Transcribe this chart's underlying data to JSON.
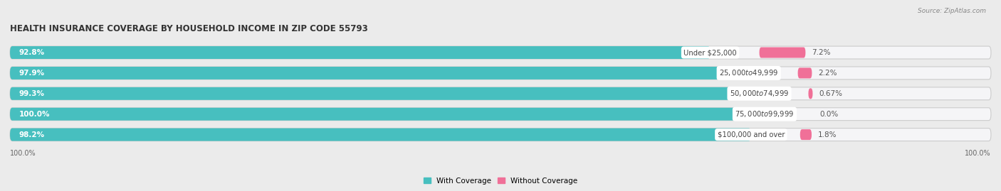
{
  "title": "HEALTH INSURANCE COVERAGE BY HOUSEHOLD INCOME IN ZIP CODE 55793",
  "source": "Source: ZipAtlas.com",
  "categories": [
    "Under $25,000",
    "$25,000 to $49,999",
    "$50,000 to $74,999",
    "$75,000 to $99,999",
    "$100,000 and over"
  ],
  "with_coverage": [
    92.8,
    97.9,
    99.3,
    100.0,
    98.2
  ],
  "without_coverage": [
    7.2,
    2.2,
    0.67,
    0.0,
    1.8
  ],
  "without_coverage_labels": [
    "7.2%",
    "2.2%",
    "0.67%",
    "0.0%",
    "1.8%"
  ],
  "with_coverage_labels": [
    "92.8%",
    "97.9%",
    "99.3%",
    "100.0%",
    "98.2%"
  ],
  "color_with": "#47BFBF",
  "color_without": "#F07098",
  "bg_color": "#ebebeb",
  "bar_bg": "#e0e0e4",
  "bar_inner_bg": "#f5f5f7",
  "label_color_with": "#ffffff",
  "category_label_color": "#444444",
  "title_fontsize": 8.5,
  "bar_height": 0.62,
  "legend_with": "With Coverage",
  "legend_without": "Without Coverage",
  "xlim_max": 130,
  "bottom_left_label": "100.0%",
  "bottom_right_label": "100.0%"
}
